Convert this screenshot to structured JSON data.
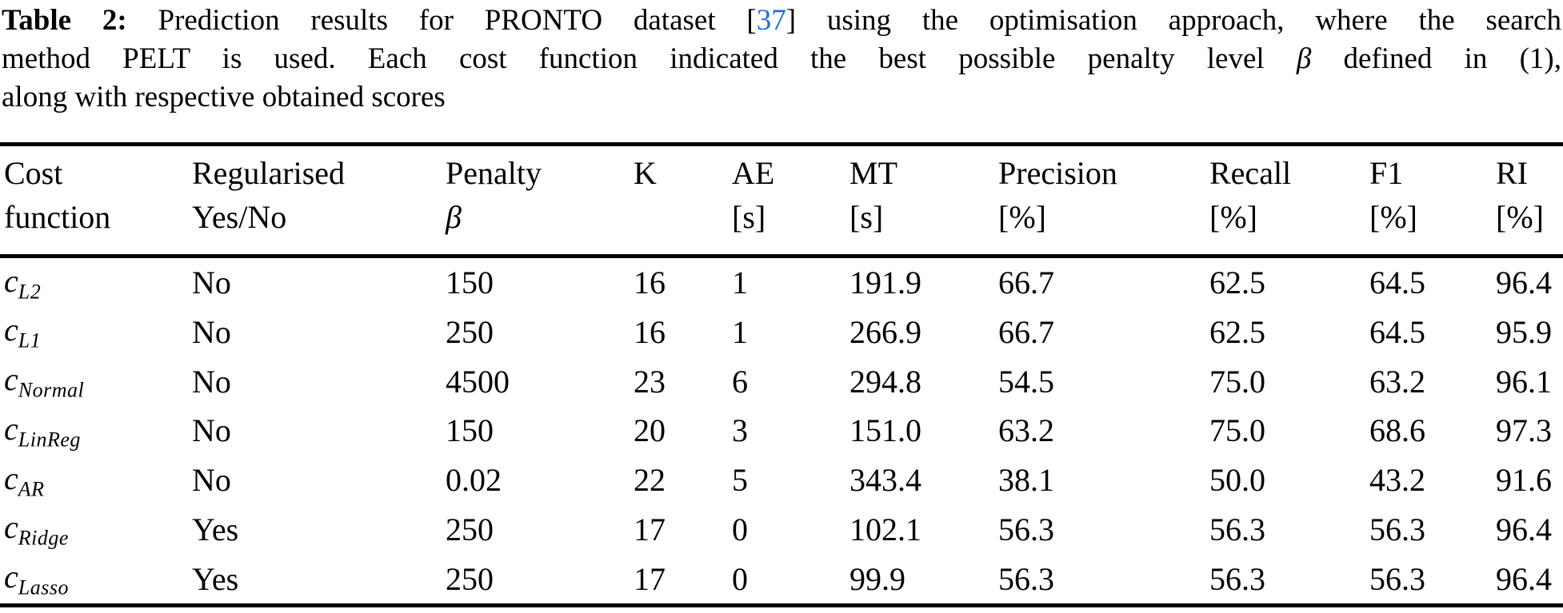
{
  "caption": {
    "label": "Table 2:",
    "line1_a": " Prediction results for PRONTO dataset [",
    "cite": "37",
    "line1_b": "] using the optimisation approach, where the search",
    "line2_a": "method PELT is used. Each cost function indicated the best possible penalty level ",
    "beta": "β",
    "line2_b": " defined in (1),",
    "line3": "along with respective obtained scores"
  },
  "colors": {
    "text": "#000000",
    "background": "#ffffff",
    "citation_blue": "#1b6fd1"
  },
  "table": {
    "columns": [
      {
        "line1": "Cost",
        "line2": "function"
      },
      {
        "line1": "Regularised",
        "line2": "Yes/No"
      },
      {
        "line1": "Penalty",
        "line2": "β"
      },
      {
        "line1": "K",
        "line2": ""
      },
      {
        "line1": "AE",
        "line2": "[s]"
      },
      {
        "line1": "MT",
        "line2": "[s]"
      },
      {
        "line1": "Precision",
        "line2": "[%]"
      },
      {
        "line1": "Recall",
        "line2": "[%]"
      },
      {
        "line1": "F1",
        "line2": "[%]"
      },
      {
        "line1": "RI",
        "line2": "[%]"
      }
    ],
    "rows": [
      {
        "cost_main": "c",
        "cost_sub": "L2",
        "regularised": "No",
        "penalty": "150",
        "k": "16",
        "ae": "1",
        "mt": "191.9",
        "precision": "66.7",
        "recall": "62.5",
        "f1": "64.5",
        "ri": "96.4"
      },
      {
        "cost_main": "c",
        "cost_sub": "L1",
        "regularised": "No",
        "penalty": "250",
        "k": "16",
        "ae": "1",
        "mt": "266.9",
        "precision": "66.7",
        "recall": "62.5",
        "f1": "64.5",
        "ri": "95.9"
      },
      {
        "cost_main": "c",
        "cost_sub": "Normal",
        "regularised": "No",
        "penalty": "4500",
        "k": "23",
        "ae": "6",
        "mt": "294.8",
        "precision": "54.5",
        "recall": "75.0",
        "f1": "63.2",
        "ri": "96.1"
      },
      {
        "cost_main": "c",
        "cost_sub": "LinReg",
        "regularised": "No",
        "penalty": "150",
        "k": "20",
        "ae": "3",
        "mt": "151.0",
        "precision": "63.2",
        "recall": "75.0",
        "f1": "68.6",
        "ri": "97.3"
      },
      {
        "cost_main": "c",
        "cost_sub": "AR",
        "regularised": "No",
        "penalty": "0.02",
        "k": "22",
        "ae": "5",
        "mt": "343.4",
        "precision": "38.1",
        "recall": "50.0",
        "f1": "43.2",
        "ri": "91.6"
      },
      {
        "cost_main": "c",
        "cost_sub": "Ridge",
        "regularised": "Yes",
        "penalty": "250",
        "k": "17",
        "ae": "0",
        "mt": "102.1",
        "precision": "56.3",
        "recall": "56.3",
        "f1": "56.3",
        "ri": "96.4"
      },
      {
        "cost_main": "c",
        "cost_sub": "Lasso",
        "regularised": "Yes",
        "penalty": "250",
        "k": "17",
        "ae": "0",
        "mt": "99.9",
        "precision": "56.3",
        "recall": "56.3",
        "f1": "56.3",
        "ri": "96.4"
      }
    ]
  }
}
